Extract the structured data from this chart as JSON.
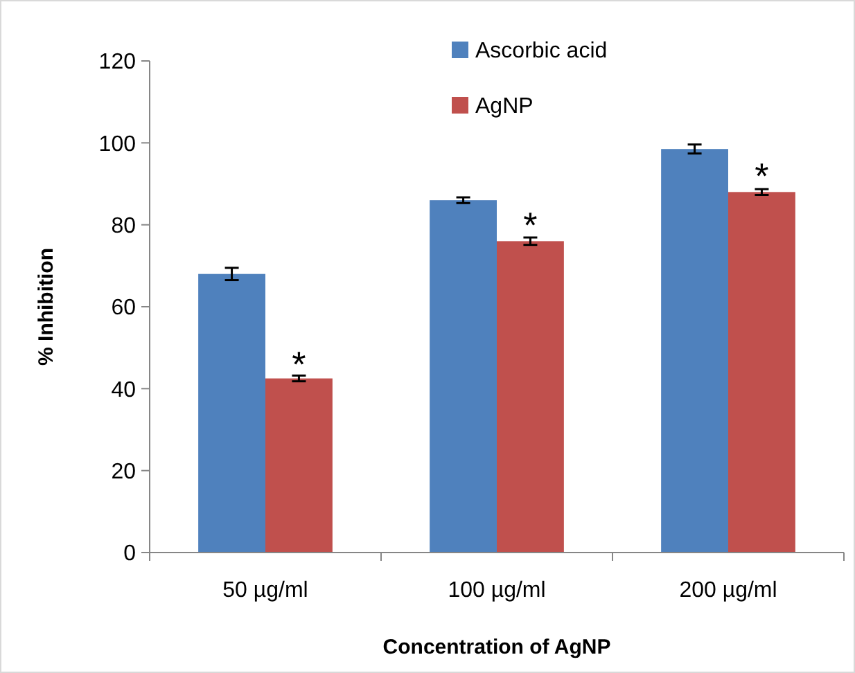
{
  "chart_data": {
    "type": "bar",
    "xlabel": "Concentration of AgNP",
    "ylabel": "% Inhibition",
    "categories": [
      "50 µg/ml",
      "100 µg/ml",
      "200 µg/ml"
    ],
    "series": [
      {
        "name": "Ascorbic acid",
        "color": "#4f81bd",
        "values": [
          68,
          86,
          98.5
        ],
        "errors": [
          1.5,
          0.7,
          1.1
        ]
      },
      {
        "name": "AgNP",
        "color": "#c0504d",
        "values": [
          42.5,
          76,
          88
        ],
        "errors": [
          0.7,
          0.9,
          0.7
        ]
      }
    ],
    "ylim": [
      0,
      120
    ],
    "yticks": [
      0,
      20,
      40,
      60,
      80,
      100,
      120
    ],
    "grid": false,
    "legend": "top",
    "annotations": [
      {
        "text": "*",
        "x": "50 µg/ml",
        "y": 45
      },
      {
        "text": "*",
        "x": "100 µg/ml",
        "y": 79
      },
      {
        "text": "*",
        "x": "200 µg/ml",
        "y": 91
      }
    ]
  }
}
